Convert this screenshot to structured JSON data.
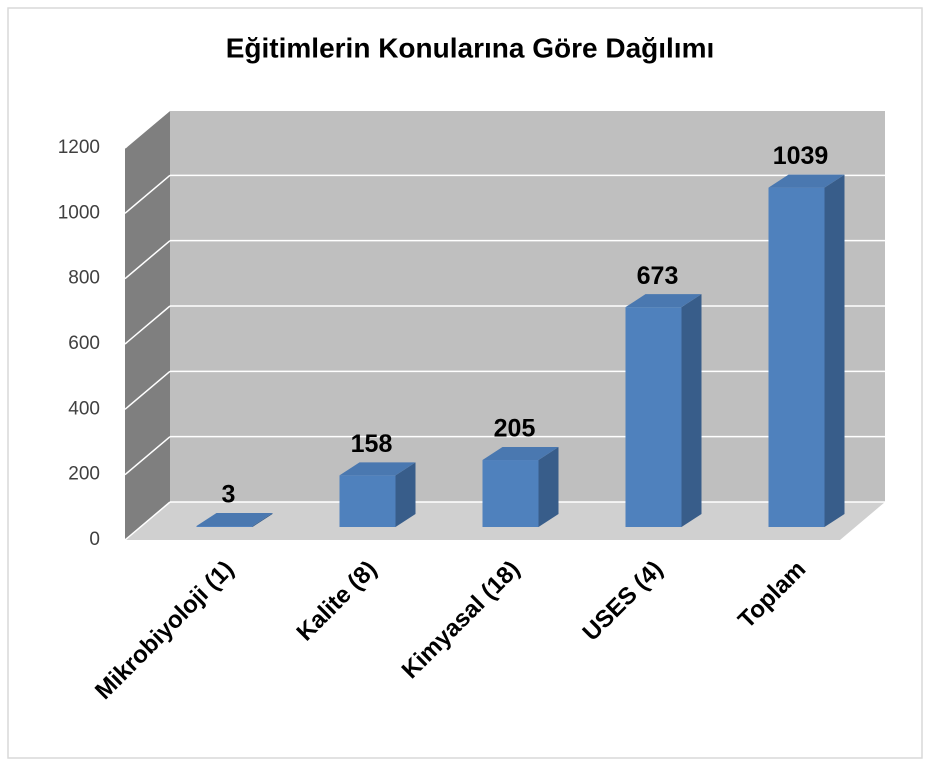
{
  "chart_data": {
    "type": "bar3d",
    "title": "Eğitimlerin Konularına Göre Dağılımı",
    "categories": [
      "Mikrobiyoloji (1)",
      "Kalite (8)",
      "Kimyasal (18)",
      "USES (4)",
      "Toplam"
    ],
    "values": [
      3,
      158,
      205,
      673,
      1039
    ],
    "color": "#4f81bd",
    "ylim": [
      0,
      1200
    ],
    "yticks": [
      0,
      200,
      400,
      600,
      800,
      1000,
      1200
    ],
    "grid": true
  }
}
